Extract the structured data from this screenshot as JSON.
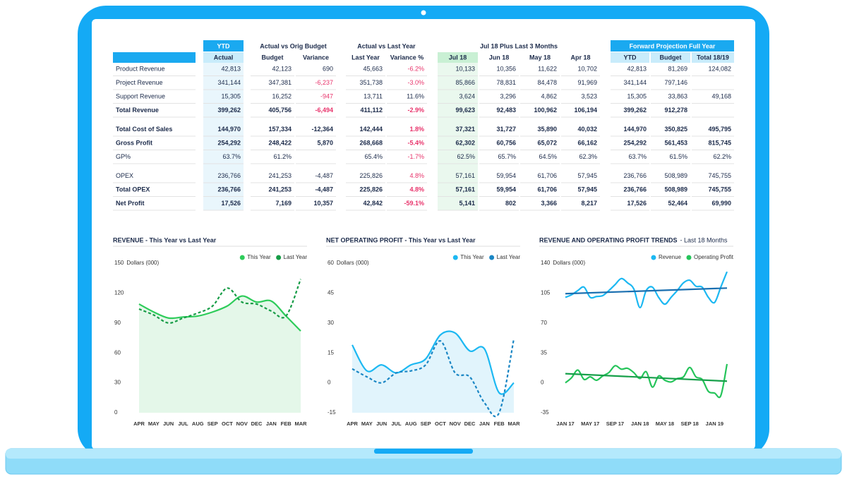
{
  "table": {
    "groups": [
      {
        "title": "YTD",
        "columns": [
          "Actual"
        ]
      },
      {
        "title": "Actual vs Orig Budget",
        "columns": [
          "Budget",
          "Variance"
        ]
      },
      {
        "title": "Actual vs Last Year",
        "columns": [
          "Last Year",
          "Variance %"
        ]
      },
      {
        "title": "Jul 18 Plus Last 3 Months",
        "columns": [
          "Jul 18",
          "Jun 18",
          "May 18",
          "Apr 18"
        ]
      },
      {
        "title": "Forward Projection Full Year",
        "columns": [
          "YTD",
          "Budget",
          "Total 18/19"
        ]
      }
    ],
    "sections": [
      [
        {
          "label": "Product Revenue",
          "cells": [
            "42,813",
            "42,123",
            "690",
            "45,663",
            "-6.2%",
            "10,133",
            "10,356",
            "11,622",
            "10,702",
            "42,813",
            "81,269",
            "124,082"
          ],
          "red": [
            4
          ]
        },
        {
          "label": "Project Revenue",
          "cells": [
            "341,144",
            "347,381",
            "-6,237",
            "351,738",
            "-3.0%",
            "85,866",
            "78,831",
            "84,478",
            "91,969",
            "341,144",
            "797,146",
            null
          ],
          "red": [
            2,
            4
          ]
        },
        {
          "label": "Support Revenue",
          "cells": [
            "15,305",
            "16,252",
            "-947",
            "13,711",
            "11.6%",
            "3,624",
            "3,296",
            "4,862",
            "3,523",
            "15,305",
            "33,863",
            "49,168"
          ],
          "red": [
            2
          ]
        },
        {
          "label": "Total Revenue",
          "cells": [
            "399,262",
            "405,756",
            "-6,494",
            "411,112",
            "-2.9%",
            "99,623",
            "92,483",
            "100,962",
            "106,194",
            "399,262",
            "912,278",
            null
          ],
          "red": [
            2,
            4
          ],
          "bold": true
        }
      ],
      [
        {
          "label": "Total Cost of Sales",
          "cells": [
            "144,970",
            "157,334",
            "-12,364",
            "142,444",
            "1.8%",
            "37,321",
            "31,727",
            "35,890",
            "40,032",
            "144,970",
            "350,825",
            "495,795"
          ],
          "red": [
            4
          ],
          "bold": true
        },
        {
          "label": "Gross Profit",
          "cells": [
            "254,292",
            "248,422",
            "5,870",
            "268,668",
            "-5.4%",
            "62,302",
            "60,756",
            "65,072",
            "66,162",
            "254,292",
            "561,453",
            "815,745"
          ],
          "red": [
            4
          ],
          "bold": true
        },
        {
          "label": "GP%",
          "cells": [
            "63.7%",
            "61.2%",
            null,
            "65.4%",
            "-1.7%",
            "62.5%",
            "65.7%",
            "64.5%",
            "62.3%",
            "63.7%",
            "61.5%",
            "62.2%"
          ],
          "red": [
            4
          ]
        }
      ],
      [
        {
          "label": "OPEX",
          "cells": [
            "236,766",
            "241,253",
            "-4,487",
            "225,826",
            "4.8%",
            "57,161",
            "59,954",
            "61,706",
            "57,945",
            "236,766",
            "508,989",
            "745,755"
          ],
          "red": [
            4
          ]
        },
        {
          "label": "Total OPEX",
          "cells": [
            "236,766",
            "241,253",
            "-4,487",
            "225,826",
            "4.8%",
            "57,161",
            "59,954",
            "61,706",
            "57,945",
            "236,766",
            "508,989",
            "745,755"
          ],
          "red": [
            4
          ],
          "bold": true
        },
        {
          "label": "Net Profit",
          "cells": [
            "17,526",
            "7,169",
            "10,357",
            "42,842",
            "-59.1%",
            "5,141",
            "802",
            "3,366",
            "8,217",
            "17,526",
            "52,464",
            "69,990"
          ],
          "red": [
            4
          ],
          "bold": true
        }
      ]
    ]
  },
  "chart_data": [
    {
      "type": "line",
      "title": "REVENUE - This Year vs Last Year",
      "y_label": "Dollars (000)",
      "categories": [
        "APR",
        "MAY",
        "JUN",
        "JUL",
        "AUG",
        "SEP",
        "OCT",
        "NOV",
        "DEC",
        "JAN",
        "FEB",
        "MAR"
      ],
      "series": [
        {
          "name": "This Year",
          "color": "#2ecc5a",
          "area": "#e4f7e9",
          "values": [
            109,
            101,
            95,
            96,
            97,
            101,
            107,
            117,
            111,
            112,
            97,
            82
          ]
        },
        {
          "name": "Last Year",
          "color": "#169c46",
          "dashed": true,
          "values": [
            104,
            98,
            90,
            95,
            100,
            107,
            125,
            111,
            109,
            102,
            97,
            134
          ]
        }
      ],
      "ylim": [
        0,
        150
      ],
      "yticks": [
        0,
        30,
        60,
        90,
        120,
        150
      ],
      "legend": "top-right"
    },
    {
      "type": "line",
      "title": "NET OPERATING PROFIT - This Year vs Last Year",
      "y_label": "Dollars (000)",
      "categories": [
        "APR",
        "MAY",
        "JUN",
        "JUL",
        "AUG",
        "SEP",
        "OCT",
        "NOV",
        "DEC",
        "JAN",
        "FEB",
        "MAR"
      ],
      "series": [
        {
          "name": "This Year",
          "color": "#1cb8f2",
          "area": "#e1f4fc",
          "values": [
            19,
            6,
            9,
            5,
            9,
            12,
            24,
            25,
            16,
            17,
            -5,
            0
          ]
        },
        {
          "name": "Last Year",
          "color": "#1a86c4",
          "dashed": true,
          "values": [
            7,
            3,
            0,
            5,
            6,
            9,
            21,
            5,
            3,
            -10,
            -15,
            22
          ]
        }
      ],
      "ylim": [
        -15,
        60
      ],
      "yticks": [
        -15,
        0,
        15,
        30,
        45,
        60
      ],
      "legend": "top-right"
    },
    {
      "type": "line",
      "title": "REVENUE AND OPERATING PROFIT TRENDS",
      "subtitle": "- Last 18 Months",
      "y_label": "Dollars (000)",
      "categories": [
        "JAN 17",
        null,
        null,
        null,
        "MAY 17",
        null,
        null,
        null,
        "SEP 17",
        null,
        null,
        null,
        "JAN 18",
        null,
        null,
        null,
        "MAY 18",
        null,
        null,
        null,
        "SEP 18",
        null,
        null,
        null,
        "JAN 19",
        null,
        null
      ],
      "series": [
        {
          "name": "Revenue",
          "color": "#1cb8f2",
          "trend_color": "#1a6fb0",
          "values": [
            100,
            103,
            108,
            112,
            100,
            101,
            102,
            108,
            115,
            122,
            117,
            110,
            88,
            108,
            112,
            100,
            92,
            100,
            108,
            117,
            120,
            113,
            112,
            100,
            94,
            112,
            130
          ]
        },
        {
          "name": "Operating Profit",
          "color": "#25c45a",
          "trend_color": "#17a04a",
          "values": [
            0,
            6,
            15,
            4,
            7,
            3,
            8,
            12,
            20,
            16,
            17,
            12,
            5,
            13,
            -5,
            8,
            3,
            1,
            5,
            7,
            18,
            7,
            4,
            -10,
            -12,
            -15,
            22
          ]
        }
      ],
      "ylim": [
        -35,
        140
      ],
      "yticks": [
        -35,
        0,
        35,
        70,
        105,
        140
      ],
      "legend": "top-right"
    }
  ]
}
